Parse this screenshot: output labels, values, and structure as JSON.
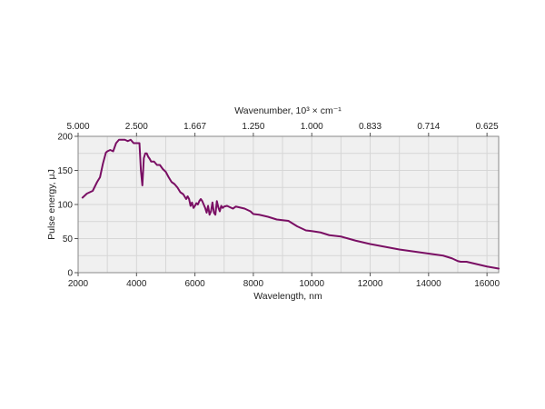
{
  "chart_data": {
    "type": "line",
    "xlabel": "Wavelength, nm",
    "ylabel": "Pulse energy, μJ",
    "top_xlabel": "Wavenumber, 10³ × cm⁻¹",
    "xlim": [
      2000,
      16400
    ],
    "ylim": [
      0,
      200
    ],
    "grid": true,
    "x_ticks": [
      2000,
      4000,
      6000,
      8000,
      10000,
      12000,
      14000,
      16000
    ],
    "x_tick_labels": [
      "2000",
      "4000",
      "6000",
      "8000",
      "10000",
      "12000",
      "14000",
      "16000"
    ],
    "y_ticks": [
      0,
      50,
      100,
      150,
      200
    ],
    "y_tick_labels": [
      "0",
      "50",
      "100",
      "150",
      "200"
    ],
    "top_ticks_wavelength_nm": [
      2000,
      4000,
      6000,
      8000,
      10000,
      12000,
      14000,
      16000
    ],
    "top_tick_labels": [
      "5.000",
      "2.500",
      "1.667",
      "1.250",
      "1.000",
      "0.833",
      "0.714",
      "0.625"
    ],
    "colors": {
      "line": "#7a0f64",
      "plot_bg": "#f0f0f0",
      "grid": "#d6d6d6"
    },
    "series": [
      {
        "x": [
          2150,
          2300,
          2500,
          2650,
          2750,
          2850,
          2950,
          3000,
          3100,
          3200,
          3300,
          3400,
          3500,
          3600,
          3700,
          3800,
          3900,
          4000,
          4100,
          4150,
          4200,
          4250,
          4300,
          4350,
          4400,
          4450,
          4500,
          4600,
          4700,
          4800,
          4900,
          5000,
          5100,
          5200,
          5300,
          5400,
          5500,
          5600,
          5700,
          5750,
          5800,
          5850,
          5900,
          5950,
          6000,
          6050,
          6100,
          6150,
          6200,
          6250,
          6300,
          6350,
          6400,
          6450,
          6500,
          6550,
          6600,
          6650,
          6700,
          6750,
          6800,
          6850,
          6900,
          6950,
          7000,
          7100,
          7200,
          7300,
          7400,
          7500,
          7700,
          7900,
          8000,
          8200,
          8500,
          8800,
          9000,
          9200,
          9500,
          9800,
          10000,
          10300,
          10600,
          11000,
          11500,
          12000,
          12500,
          13000,
          13500,
          14000,
          14500,
          14800,
          15000,
          15100,
          15300,
          15600,
          16000,
          16400
        ],
        "y": [
          110,
          116,
          120,
          133,
          140,
          160,
          176,
          178,
          180,
          178,
          190,
          195,
          195,
          195,
          193,
          195,
          190,
          190,
          190,
          150,
          128,
          168,
          175,
          175,
          170,
          167,
          163,
          163,
          158,
          158,
          152,
          148,
          140,
          133,
          130,
          125,
          118,
          115,
          108,
          112,
          108,
          98,
          103,
          95,
          98,
          102,
          100,
          105,
          108,
          105,
          100,
          95,
          88,
          98,
          85,
          90,
          103,
          88,
          85,
          105,
          96,
          90,
          98,
          95,
          97,
          98,
          96,
          94,
          97,
          96,
          94,
          90,
          86,
          85,
          82,
          78,
          77,
          76,
          68,
          62,
          61,
          59,
          55,
          53,
          47,
          42,
          38,
          34,
          31,
          28,
          25,
          21,
          17,
          16,
          16,
          13,
          9,
          6
        ]
      }
    ]
  }
}
